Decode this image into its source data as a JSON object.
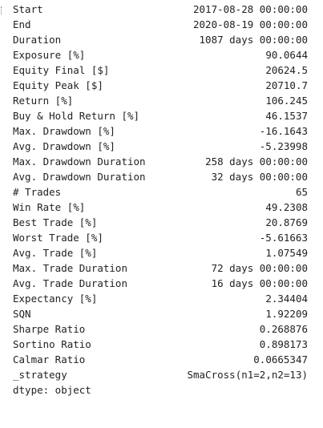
{
  "stats": [
    {
      "key": "Start",
      "value": "2017-08-28 00:00:00"
    },
    {
      "key": "End",
      "value": "2020-08-19 00:00:00"
    },
    {
      "key": "Duration",
      "value": "1087 days 00:00:00"
    },
    {
      "key": "Exposure [%]",
      "value": "90.0644"
    },
    {
      "key": "Equity Final [$]",
      "value": "20624.5"
    },
    {
      "key": "Equity Peak [$]",
      "value": "20710.7"
    },
    {
      "key": "Return [%]",
      "value": "106.245"
    },
    {
      "key": "Buy & Hold Return [%]",
      "value": "46.1537"
    },
    {
      "key": "Max. Drawdown [%]",
      "value": "-16.1643"
    },
    {
      "key": "Avg. Drawdown [%]",
      "value": "-5.23998"
    },
    {
      "key": "Max. Drawdown Duration",
      "value": "258 days 00:00:00"
    },
    {
      "key": "Avg. Drawdown Duration",
      "value": "32 days 00:00:00"
    },
    {
      "key": "# Trades",
      "value": "65"
    },
    {
      "key": "Win Rate [%]",
      "value": "49.2308"
    },
    {
      "key": "Best Trade [%]",
      "value": "20.8769"
    },
    {
      "key": "Worst Trade [%]",
      "value": "-5.61663"
    },
    {
      "key": "Avg. Trade [%]",
      "value": "1.07549"
    },
    {
      "key": "Max. Trade Duration",
      "value": "72 days 00:00:00"
    },
    {
      "key": "Avg. Trade Duration",
      "value": "16 days 00:00:00"
    },
    {
      "key": "Expectancy [%]",
      "value": "2.34404"
    },
    {
      "key": "SQN",
      "value": "1.92209"
    },
    {
      "key": "Sharpe Ratio",
      "value": "0.268876"
    },
    {
      "key": "Sortino Ratio",
      "value": "0.898173"
    },
    {
      "key": "Calmar Ratio",
      "value": "0.0665347"
    },
    {
      "key": "_strategy",
      "value": "SmaCross(n1=2,n2=13)"
    }
  ],
  "footer": "dtype: object"
}
